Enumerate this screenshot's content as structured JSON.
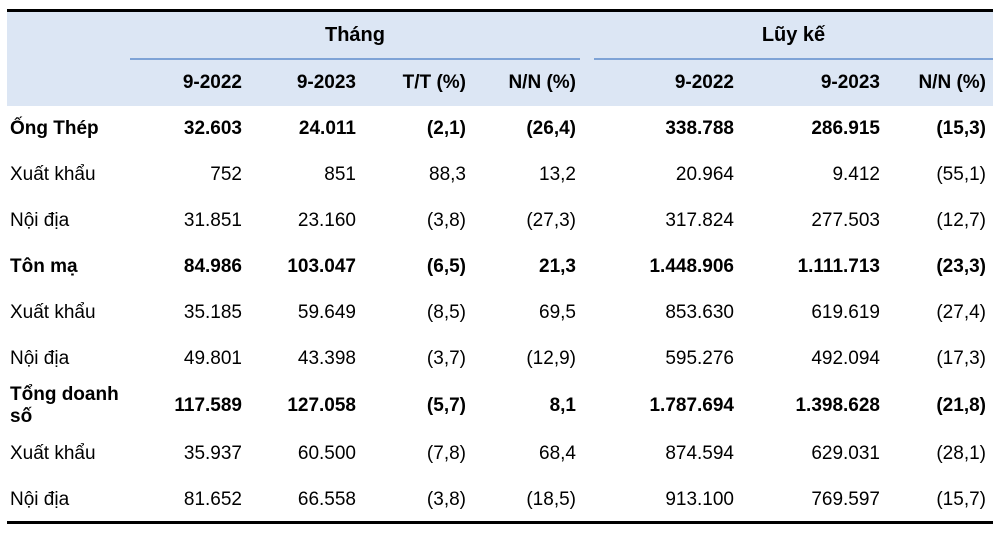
{
  "groups": {
    "month": "Tháng",
    "cumulative": "Lũy kế"
  },
  "columns": [
    "9-2022",
    "9-2023",
    "T/T (%)",
    "N/N (%)",
    "9-2022",
    "9-2023",
    "N/N (%)"
  ],
  "rows": [
    {
      "label": "Ống Thép",
      "bold": true,
      "values": [
        "32.603",
        "24.011",
        "(2,1)",
        "(26,4)",
        "338.788",
        "286.915",
        "(15,3)"
      ]
    },
    {
      "label": "Xuất khẩu",
      "bold": false,
      "values": [
        "752",
        "851",
        "88,3",
        "13,2",
        "20.964",
        "9.412",
        "(55,1)"
      ]
    },
    {
      "label": "Nội địa",
      "bold": false,
      "values": [
        "31.851",
        "23.160",
        "(3,8)",
        "(27,3)",
        "317.824",
        "277.503",
        "(12,7)"
      ]
    },
    {
      "label": "Tôn mạ",
      "bold": true,
      "values": [
        "84.986",
        "103.047",
        "(6,5)",
        "21,3",
        "1.448.906",
        "1.111.713",
        "(23,3)"
      ]
    },
    {
      "label": "Xuất khẩu",
      "bold": false,
      "values": [
        "35.185",
        "59.649",
        "(8,5)",
        "69,5",
        "853.630",
        "619.619",
        "(27,4)"
      ]
    },
    {
      "label": "Nội địa",
      "bold": false,
      "values": [
        "49.801",
        "43.398",
        "(3,7)",
        "(12,9)",
        "595.276",
        "492.094",
        "(17,3)"
      ]
    },
    {
      "label": "Tổng doanh số",
      "bold": true,
      "values": [
        "117.589",
        "127.058",
        "(5,7)",
        "8,1",
        "1.787.694",
        "1.398.628",
        "(21,8)"
      ]
    },
    {
      "label": "Xuất khẩu",
      "bold": false,
      "values": [
        "35.937",
        "60.500",
        "(7,8)",
        "68,4",
        "874.594",
        "629.031",
        "(28,1)"
      ]
    },
    {
      "label": "Nội địa",
      "bold": false,
      "values": [
        "81.652",
        "66.558",
        "(3,8)",
        "(18,5)",
        "913.100",
        "769.597",
        "(15,7)"
      ]
    }
  ]
}
